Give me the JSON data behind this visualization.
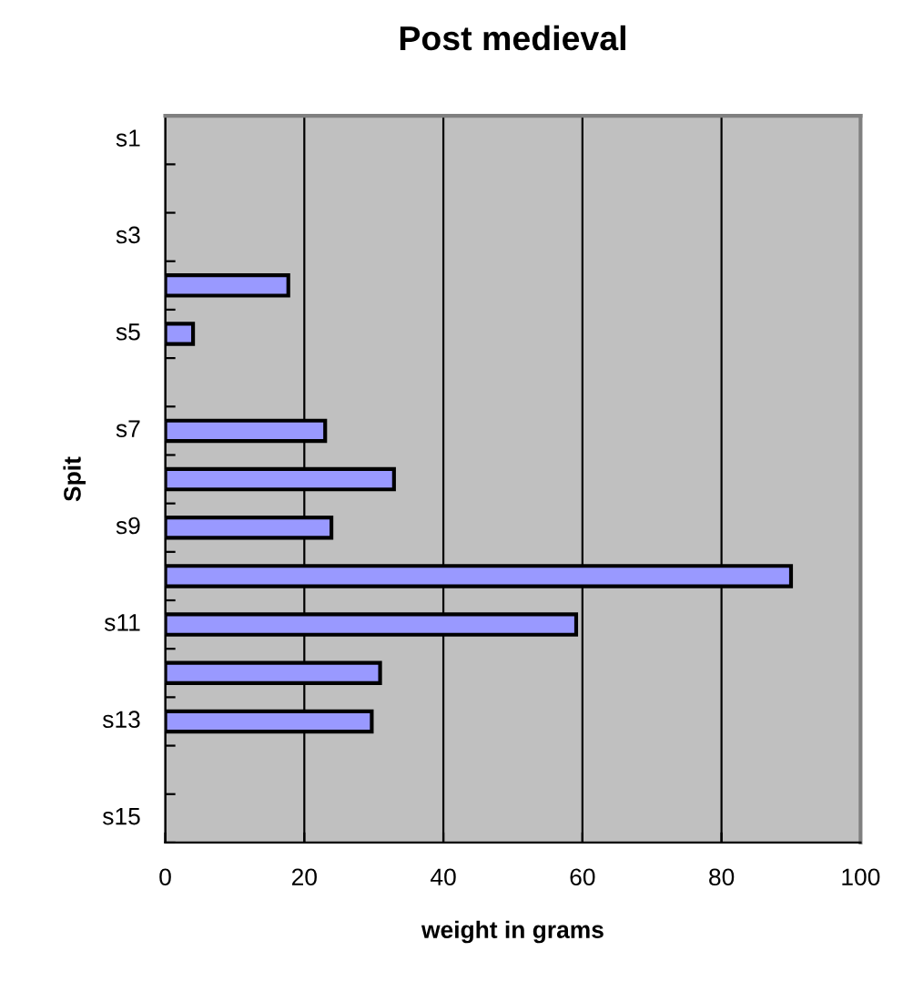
{
  "chart_data": {
    "type": "bar",
    "orientation": "horizontal",
    "title": "Post medieval",
    "xlabel": "weight in grams",
    "ylabel": "Spit",
    "categories": [
      "s1",
      null,
      "s3",
      null,
      "s5",
      null,
      "s7",
      null,
      "s9",
      null,
      "s11",
      null,
      "s13",
      null,
      "s15"
    ],
    "values": [
      null,
      null,
      null,
      17.7,
      4,
      null,
      23,
      32.9,
      23.9,
      90,
      59.1,
      30.9,
      29.7,
      null,
      null
    ],
    "color": "#9999ff",
    "xlim": [
      0,
      100
    ],
    "xticks": [
      0,
      20,
      40,
      60,
      80,
      100
    ],
    "grid": "x",
    "legend": false
  }
}
